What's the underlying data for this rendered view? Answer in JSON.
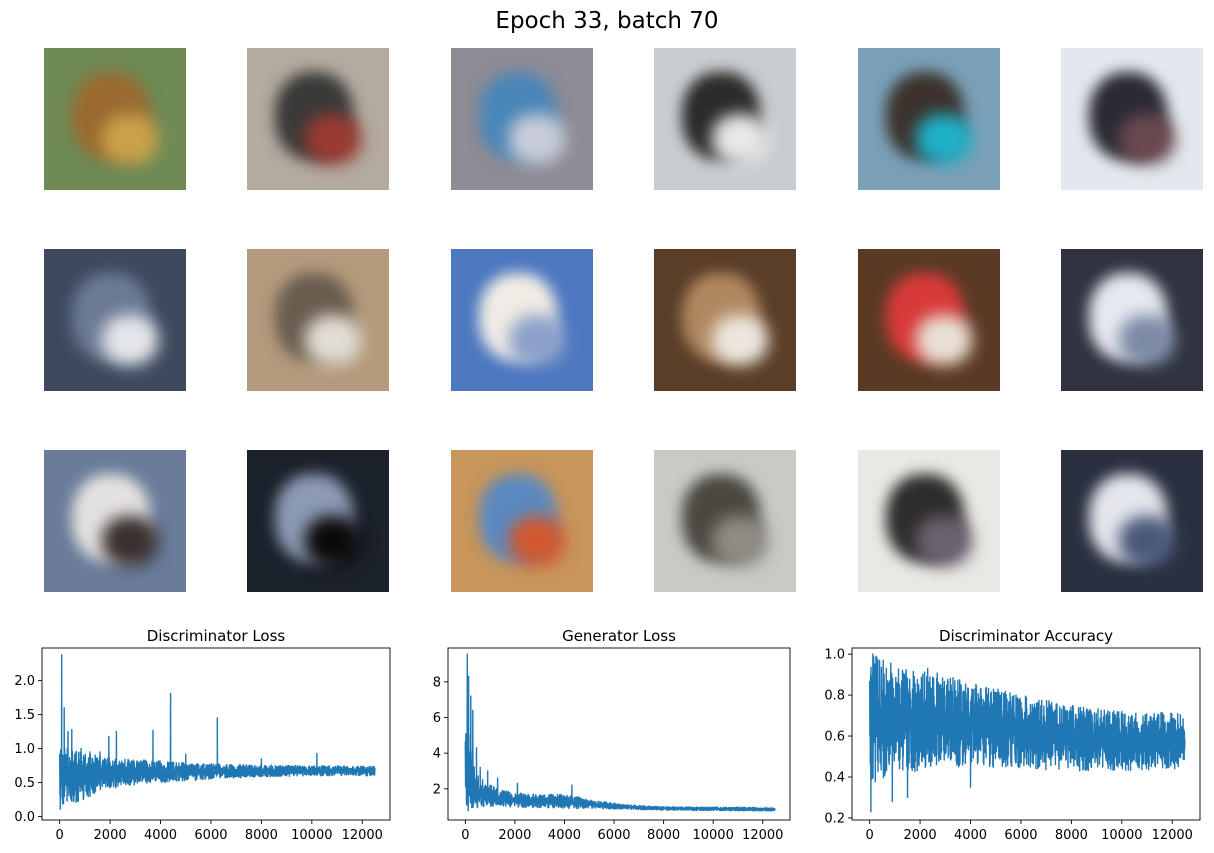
{
  "figure": {
    "title": "Epoch 33, batch 70"
  },
  "samples": [
    {
      "bg": "#6f8a55",
      "c1": "#9a6a30",
      "c2": "#c9a24a"
    },
    {
      "bg": "#b3aaa0",
      "c1": "#3a3a38",
      "c2": "#9a3a32"
    },
    {
      "bg": "#8e8c95",
      "c1": "#4a86b8",
      "c2": "#c8ccd8"
    },
    {
      "bg": "#c9cdd2",
      "c1": "#2b2a28",
      "c2": "#e8e8e6"
    },
    {
      "bg": "#7aa0b8",
      "c1": "#3d332c",
      "c2": "#1fb0c8"
    },
    {
      "bg": "#e3e8ee",
      "c1": "#2b2a33",
      "c2": "#6a4a50"
    },
    {
      "bg": "#3d4a5e",
      "c1": "#6d7a96",
      "c2": "#e4e6ea"
    },
    {
      "bg": "#b49a7c",
      "c1": "#6a5d50",
      "c2": "#e2ddd4"
    },
    {
      "bg": "#4d78c0",
      "c1": "#f1ece4",
      "c2": "#8aa0c8"
    },
    {
      "bg": "#5a3e28",
      "c1": "#b08860",
      "c2": "#ece6de"
    },
    {
      "bg": "#5a3a24",
      "c1": "#d83a3a",
      "c2": "#e8e0d4"
    },
    {
      "bg": "#2f3440",
      "c1": "#e6e9f0",
      "c2": "#7d8aa6"
    },
    {
      "bg": "#6a7c9a",
      "c1": "#e4e2e0",
      "c2": "#3a3030"
    },
    {
      "bg": "#1c222c",
      "c1": "#8d9ab4",
      "c2": "#0a0a0a"
    },
    {
      "bg": "#c8955a",
      "c1": "#5a8ac0",
      "c2": "#d05830"
    },
    {
      "bg": "#c8cac6",
      "c1": "#4a4840",
      "c2": "#8e8c84"
    },
    {
      "bg": "#e8e8e4",
      "c1": "#2e2c2c",
      "c2": "#6a6270"
    },
    {
      "bg": "#2a3040",
      "c1": "#e4e6ec",
      "c2": "#4a5878"
    }
  ],
  "series_color": "#1f77b4",
  "chart_data": [
    {
      "type": "line",
      "title": "Discriminator Loss",
      "xlim": [
        -700,
        13100
      ],
      "ylim": [
        -0.05,
        2.48
      ],
      "xticks": [
        0,
        2000,
        4000,
        6000,
        8000,
        10000,
        12000
      ],
      "yticks": [
        0.0,
        0.5,
        1.0,
        1.5,
        2.0
      ],
      "ytick_labels": [
        "0.0",
        "0.5",
        "1.0",
        "1.5",
        "2.0"
      ],
      "x_max": 12500,
      "bands": [
        [
          0,
          0.08,
          1.05
        ],
        [
          300,
          0.15,
          1.0
        ],
        [
          800,
          0.22,
          0.95
        ],
        [
          1500,
          0.35,
          0.9
        ],
        [
          2500,
          0.45,
          0.85
        ],
        [
          4000,
          0.5,
          0.82
        ],
        [
          6000,
          0.55,
          0.78
        ],
        [
          8000,
          0.58,
          0.76
        ],
        [
          10000,
          0.6,
          0.75
        ],
        [
          12500,
          0.6,
          0.74
        ]
      ],
      "spikes": [
        [
          80,
          2.38
        ],
        [
          180,
          1.6
        ],
        [
          330,
          1.25
        ],
        [
          480,
          1.28
        ],
        [
          850,
          1.0
        ],
        [
          1200,
          0.95
        ],
        [
          1600,
          0.95
        ],
        [
          1950,
          1.18
        ],
        [
          2250,
          1.25
        ],
        [
          3700,
          1.27
        ],
        [
          4400,
          1.81
        ],
        [
          5000,
          0.92
        ],
        [
          6250,
          1.45
        ],
        [
          8000,
          0.85
        ],
        [
          10200,
          0.93
        ]
      ]
    },
    {
      "type": "line",
      "title": "Generator Loss",
      "xlim": [
        -700,
        13100
      ],
      "ylim": [
        0.25,
        9.9
      ],
      "xticks": [
        0,
        2000,
        4000,
        6000,
        8000,
        10000,
        12000
      ],
      "yticks": [
        2,
        4,
        6,
        8
      ],
      "ytick_labels": [
        "2",
        "4",
        "6",
        "8"
      ],
      "x_max": 12500,
      "bands": [
        [
          0,
          0.5,
          5.5
        ],
        [
          150,
          0.8,
          5.0
        ],
        [
          400,
          0.9,
          3.0
        ],
        [
          800,
          1.0,
          2.4
        ],
        [
          1500,
          1.0,
          1.9
        ],
        [
          2500,
          0.95,
          1.7
        ],
        [
          4000,
          0.9,
          1.7
        ],
        [
          5000,
          0.9,
          1.4
        ],
        [
          6500,
          0.85,
          1.1
        ],
        [
          8000,
          0.8,
          1.0
        ],
        [
          12500,
          0.75,
          0.95
        ]
      ],
      "spikes": [
        [
          80,
          9.55
        ],
        [
          130,
          8.3
        ],
        [
          220,
          7.2
        ],
        [
          300,
          6.4
        ],
        [
          450,
          4.3
        ],
        [
          600,
          3.2
        ],
        [
          900,
          3.0
        ],
        [
          1300,
          2.6
        ],
        [
          2100,
          2.3
        ],
        [
          4300,
          2.2
        ]
      ]
    },
    {
      "type": "line",
      "title": "Discriminator Accuracy",
      "xlim": [
        -700,
        13100
      ],
      "ylim": [
        0.19,
        1.03
      ],
      "xticks": [
        0,
        2000,
        4000,
        6000,
        8000,
        10000,
        12000
      ],
      "yticks": [
        0.2,
        0.4,
        0.6,
        0.8,
        1.0
      ],
      "ytick_labels": [
        "0.2",
        "0.4",
        "0.6",
        "0.8",
        "1.0"
      ],
      "x_max": 12500,
      "bands": [
        [
          0,
          0.35,
          1.0
        ],
        [
          500,
          0.38,
          0.98
        ],
        [
          1500,
          0.42,
          0.95
        ],
        [
          3000,
          0.45,
          0.9
        ],
        [
          4500,
          0.45,
          0.85
        ],
        [
          6000,
          0.44,
          0.8
        ],
        [
          8000,
          0.43,
          0.75
        ],
        [
          10000,
          0.43,
          0.72
        ],
        [
          12500,
          0.44,
          0.71
        ]
      ],
      "spikes": [
        [
          50,
          0.23
        ],
        [
          130,
          1.0
        ],
        [
          250,
          0.99
        ],
        [
          900,
          0.28
        ],
        [
          1500,
          0.3
        ],
        [
          2300,
          0.93
        ],
        [
          4000,
          0.35
        ]
      ]
    }
  ]
}
